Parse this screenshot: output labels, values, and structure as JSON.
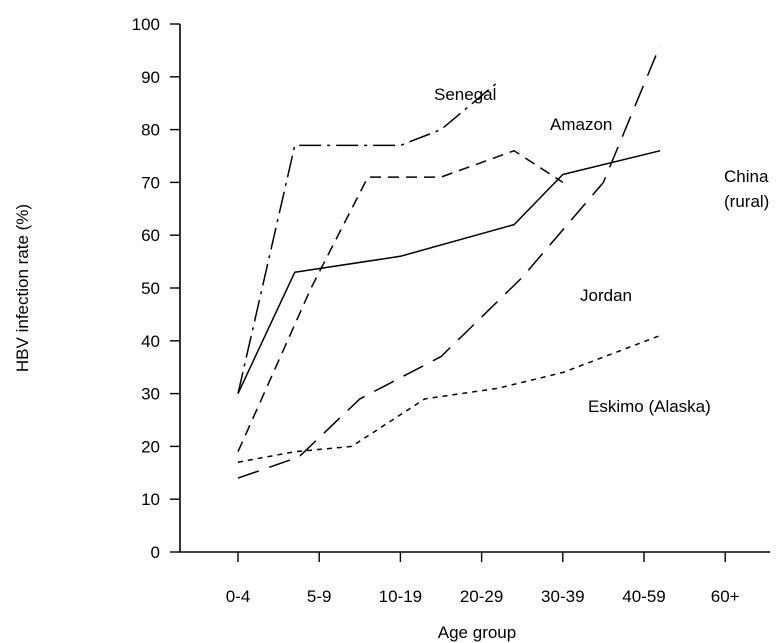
{
  "chart_data": {
    "type": "line",
    "title": "",
    "xlabel": "Age group",
    "ylabel": "HBV infection rate (%)",
    "ylim": [
      0,
      100
    ],
    "yticks": [
      0,
      10,
      20,
      30,
      40,
      50,
      60,
      70,
      80,
      90,
      100
    ],
    "categories": [
      "0-4",
      "5-9",
      "10-19",
      "20-29",
      "30-39",
      "40-59",
      "60+"
    ],
    "grid": false,
    "legend": "none (series labelled directly on plot)",
    "series": [
      {
        "name": "Senegal",
        "dash": "dash-dot",
        "points": [
          [
            0.0,
            30
          ],
          [
            0.7,
            77
          ],
          [
            1.3,
            77
          ],
          [
            2.0,
            77
          ],
          [
            2.5,
            80
          ],
          [
            3.2,
            89
          ]
        ]
      },
      {
        "name": "Amazon",
        "dash": "medium-dash",
        "points": [
          [
            0.0,
            19
          ],
          [
            0.9,
            50
          ],
          [
            1.6,
            71
          ],
          [
            2.5,
            71
          ],
          [
            3.4,
            76
          ],
          [
            4.0,
            70
          ]
        ]
      },
      {
        "name": "China (rural)",
        "label_lines": [
          "China",
          "(rural)"
        ],
        "dash": "solid",
        "points": [
          [
            0.0,
            30
          ],
          [
            0.7,
            53
          ],
          [
            2.0,
            56
          ],
          [
            3.4,
            62
          ],
          [
            4.0,
            71.5
          ],
          [
            5.2,
            76
          ]
        ]
      },
      {
        "name": "Jordan",
        "dash": "long-dash",
        "points": [
          [
            0.0,
            14
          ],
          [
            0.75,
            18
          ],
          [
            1.5,
            29
          ],
          [
            2.5,
            37
          ],
          [
            3.5,
            52
          ],
          [
            4.5,
            70
          ],
          [
            5.2,
            96
          ]
        ]
      },
      {
        "name": "Eskimo (Alaska)",
        "dash": "short-dash",
        "points": [
          [
            0.0,
            17
          ],
          [
            0.7,
            19
          ],
          [
            1.4,
            20
          ],
          [
            2.3,
            29
          ],
          [
            3.2,
            31
          ],
          [
            4.0,
            34
          ],
          [
            5.2,
            41
          ]
        ]
      }
    ]
  }
}
